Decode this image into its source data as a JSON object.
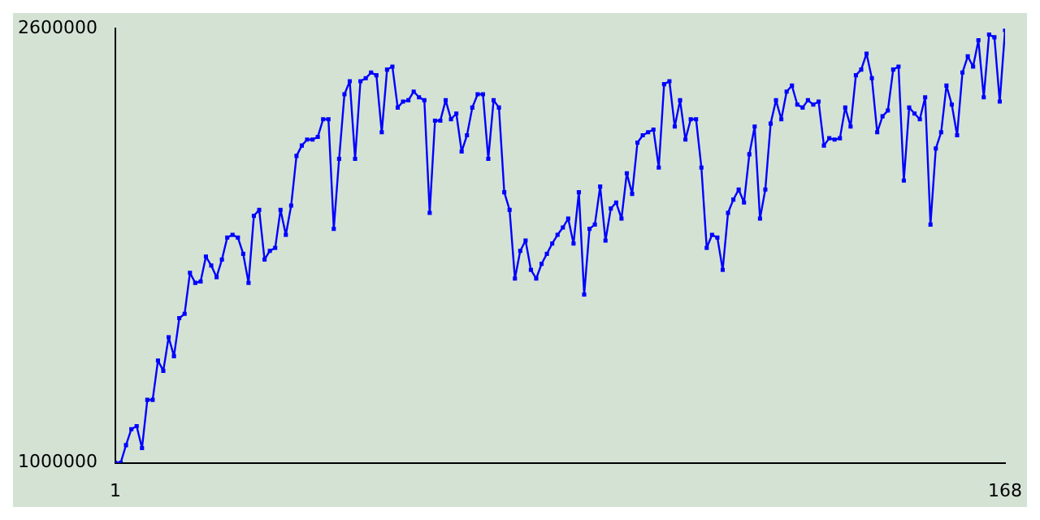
{
  "chart_data": {
    "type": "line",
    "x": [
      1,
      2,
      3,
      4,
      5,
      6,
      7,
      8,
      9,
      10,
      11,
      12,
      13,
      14,
      15,
      16,
      17,
      18,
      19,
      20,
      21,
      22,
      23,
      24,
      25,
      26,
      27,
      28,
      29,
      30,
      31,
      32,
      33,
      34,
      35,
      36,
      37,
      38,
      39,
      40,
      41,
      42,
      43,
      44,
      45,
      46,
      47,
      48,
      49,
      50,
      51,
      52,
      53,
      54,
      55,
      56,
      57,
      58,
      59,
      60,
      61,
      62,
      63,
      64,
      65,
      66,
      67,
      68,
      69,
      70,
      71,
      72,
      73,
      74,
      75,
      76,
      77,
      78,
      79,
      80,
      81,
      82,
      83,
      84,
      85,
      86,
      87,
      88,
      89,
      90,
      91,
      92,
      93,
      94,
      95,
      96,
      97,
      98,
      99,
      100,
      101,
      102,
      103,
      104,
      105,
      106,
      107,
      108,
      109,
      110,
      111,
      112,
      113,
      114,
      115,
      116,
      117,
      118,
      119,
      120,
      121,
      122,
      123,
      124,
      125,
      126,
      127,
      128,
      129,
      130,
      131,
      132,
      133,
      134,
      135,
      136,
      137,
      138,
      139,
      140,
      141,
      142,
      143,
      144,
      145,
      146,
      147,
      148,
      149,
      150,
      151,
      152,
      153,
      154,
      155,
      156,
      157,
      158,
      159,
      160,
      161,
      162,
      163,
      164,
      165,
      166,
      167,
      168
    ],
    "series": [
      {
        "color": "#0000ff",
        "values": [
          1000000,
          1000000,
          1065000,
          1124000,
          1135000,
          1054000,
          1232000,
          1232000,
          1377000,
          1339000,
          1463000,
          1393000,
          1533000,
          1549000,
          1700000,
          1663000,
          1668000,
          1760000,
          1727000,
          1684000,
          1749000,
          1830000,
          1840000,
          1830000,
          1770000,
          1663000,
          1910000,
          1932000,
          1749000,
          1781000,
          1792000,
          1932000,
          1840000,
          1948000,
          2131000,
          2169000,
          2191000,
          2191000,
          2201000,
          2266000,
          2266000,
          1862000,
          2120000,
          2358000,
          2406000,
          2120000,
          2406000,
          2417000,
          2438000,
          2428000,
          2218000,
          2449000,
          2460000,
          2309000,
          2331000,
          2336000,
          2368000,
          2347000,
          2336000,
          1921000,
          2261000,
          2261000,
          2336000,
          2266000,
          2287000,
          2147000,
          2207000,
          2309000,
          2358000,
          2358000,
          2120000,
          2336000,
          2309000,
          1997000,
          1932000,
          1679000,
          1781000,
          1819000,
          1711000,
          1679000,
          1733000,
          1770000,
          1808000,
          1840000,
          1867000,
          1900000,
          1808000,
          1997000,
          1620000,
          1862000,
          1878000,
          2018000,
          1819000,
          1937000,
          1959000,
          1900000,
          2067000,
          1991000,
          2180000,
          2207000,
          2218000,
          2228000,
          2088000,
          2395000,
          2406000,
          2239000,
          2336000,
          2191000,
          2266000,
          2266000,
          2088000,
          1792000,
          1840000,
          1830000,
          1711000,
          1921000,
          1970000,
          2007000,
          1959000,
          2137000,
          2239000,
          1900000,
          2007000,
          2250000,
          2336000,
          2266000,
          2368000,
          2390000,
          2320000,
          2309000,
          2336000,
          2320000,
          2331000,
          2169000,
          2196000,
          2191000,
          2196000,
          2309000,
          2239000,
          2428000,
          2449000,
          2508000,
          2417000,
          2218000,
          2277000,
          2298000,
          2449000,
          2460000,
          2040000,
          2309000,
          2287000,
          2266000,
          2347000,
          1878000,
          2158000,
          2218000,
          2390000,
          2320000,
          2207000,
          2438000,
          2498000,
          2460000,
          2557000,
          2347000,
          2578000,
          2568000,
          2331000,
          2595000
        ]
      }
    ],
    "xlim": [
      1,
      168
    ],
    "xticks": [
      1,
      168
    ],
    "ylim": [
      1000000,
      2600000
    ],
    "yticks": [
      1000000,
      2600000
    ],
    "grid": false,
    "legend": false,
    "marker": "square",
    "line_style": "solid"
  }
}
